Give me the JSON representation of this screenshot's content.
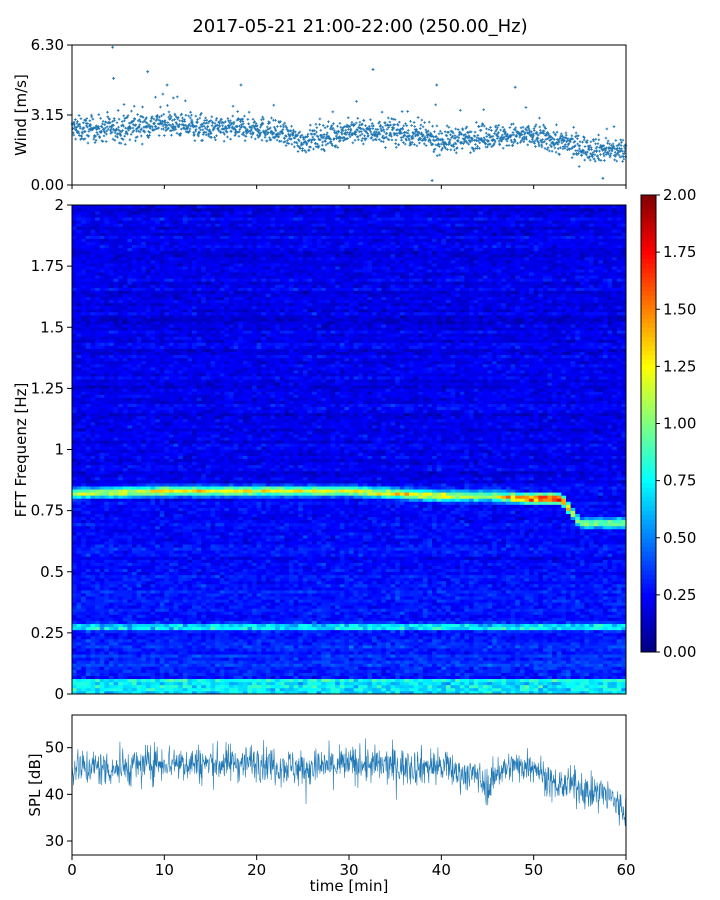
{
  "figure": {
    "title": "2017-05-21 21:00-22:00 (250.00_Hz)"
  },
  "chart_data": [
    {
      "type": "scatter",
      "panel": "wind",
      "ylabel": "Wind [m/s]",
      "xlabel": "",
      "xlim": [
        0,
        60
      ],
      "ylim": [
        0,
        6.3
      ],
      "ytick_labels": [
        "0.00",
        "3.15",
        "6.30"
      ],
      "yticks": [
        0,
        3.15,
        6.3
      ],
      "marker_color": "#1f77b4",
      "trend": {
        "x": [
          0,
          5,
          10,
          15,
          20,
          25,
          30,
          35,
          40,
          45,
          50,
          55,
          60
        ],
        "y": [
          2.5,
          2.5,
          2.8,
          2.5,
          2.6,
          2.0,
          2.4,
          2.4,
          2.0,
          2.2,
          2.2,
          1.7,
          1.5
        ]
      },
      "outliers": [
        {
          "x": 4.4,
          "y": 6.2
        },
        {
          "x": 4.5,
          "y": 4.8
        },
        {
          "x": 8.2,
          "y": 5.1
        },
        {
          "x": 10.3,
          "y": 4.5
        },
        {
          "x": 18.3,
          "y": 4.5
        },
        {
          "x": 32.6,
          "y": 5.2
        },
        {
          "x": 39.5,
          "y": 4.5
        },
        {
          "x": 48.0,
          "y": 4.4
        },
        {
          "x": 39.0,
          "y": 0.2
        },
        {
          "x": 57.5,
          "y": 0.3
        }
      ]
    },
    {
      "type": "heatmap",
      "panel": "spectrogram",
      "ylabel": "FFT Frequenz [Hz]",
      "xlabel": "",
      "xlim": [
        0,
        60
      ],
      "ylim": [
        0,
        2
      ],
      "yticks": [
        0,
        0.25,
        0.5,
        0.75,
        1,
        1.25,
        1.5,
        1.75,
        2
      ],
      "ytick_labels": [
        "0",
        "0.25",
        "0.5",
        "0.75",
        "1",
        "1.25",
        "1.5",
        "1.75",
        "2"
      ],
      "colormap": "jet",
      "colorbar": {
        "range": [
          0,
          2
        ],
        "ticks": [
          0,
          0.25,
          0.5,
          0.75,
          1,
          1.25,
          1.5,
          1.75,
          2
        ],
        "tick_labels": [
          "0.00",
          "0.25",
          "0.50",
          "0.75",
          "1.00",
          "1.25",
          "1.50",
          "1.75",
          "2.00"
        ]
      },
      "dominant_band": {
        "x": [
          0,
          10,
          20,
          30,
          40,
          45,
          50,
          53,
          55,
          60
        ],
        "freq": [
          0.82,
          0.83,
          0.83,
          0.83,
          0.81,
          0.81,
          0.8,
          0.8,
          0.7,
          0.7
        ],
        "intensity": [
          0.95,
          1.05,
          1.0,
          1.0,
          1.2,
          0.9,
          1.6,
          1.7,
          0.85,
          0.9
        ]
      },
      "background_level": 0.2,
      "low_freq_band": {
        "freq": 0.27,
        "intensity": 0.55
      }
    },
    {
      "type": "line",
      "panel": "spl",
      "ylabel": "SPL [dB]",
      "xlabel": "time [min]",
      "xlim": [
        0,
        60
      ],
      "ylim": [
        27,
        57
      ],
      "yticks": [
        30,
        40,
        50
      ],
      "ytick_labels": [
        "30",
        "40",
        "50"
      ],
      "xticks": [
        0,
        10,
        20,
        30,
        40,
        50,
        60
      ],
      "xtick_labels": [
        "0",
        "10",
        "20",
        "30",
        "40",
        "50",
        "60"
      ],
      "line_color": "#1f77b4",
      "envelope": {
        "x": [
          0,
          5,
          10,
          15,
          20,
          25,
          30,
          35,
          40,
          42,
          44,
          45,
          46,
          48,
          50,
          52,
          54,
          56,
          58,
          60
        ],
        "mean": [
          46,
          45.5,
          47,
          46.5,
          47,
          45.5,
          46.5,
          46,
          46,
          44.5,
          44,
          41,
          45,
          46,
          46.5,
          42,
          42,
          40.5,
          40,
          36
        ],
        "spread": [
          4,
          4,
          4,
          4,
          4,
          4,
          4,
          4,
          4,
          3.5,
          3.5,
          3.5,
          3.5,
          3.5,
          3.5,
          3.5,
          3.5,
          3.5,
          4,
          4
        ]
      }
    }
  ]
}
